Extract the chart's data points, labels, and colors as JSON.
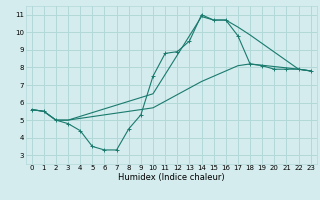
{
  "title": "",
  "xlabel": "Humidex (Indice chaleur)",
  "ylabel": "",
  "bg_color": "#d4eced",
  "grid_color": "#b2d8d8",
  "line_color": "#1a7a6e",
  "xlim": [
    -0.5,
    23.5
  ],
  "ylim": [
    2.5,
    11.5
  ],
  "xticks": [
    0,
    1,
    2,
    3,
    4,
    5,
    6,
    7,
    8,
    9,
    10,
    11,
    12,
    13,
    14,
    15,
    16,
    17,
    18,
    19,
    20,
    21,
    22,
    23
  ],
  "yticks": [
    3,
    4,
    5,
    6,
    7,
    8,
    9,
    10,
    11
  ],
  "series": [
    {
      "x": [
        0,
        1,
        2,
        3,
        4,
        5,
        6,
        7,
        8,
        9,
        10,
        11,
        12,
        13,
        14,
        15,
        16,
        17,
        18,
        19,
        20,
        21,
        22,
        23
      ],
      "y": [
        5.6,
        5.5,
        5.0,
        4.8,
        4.4,
        3.5,
        3.3,
        3.3,
        4.5,
        5.3,
        7.5,
        8.8,
        8.9,
        9.5,
        11.0,
        10.7,
        10.7,
        9.8,
        8.2,
        8.1,
        7.9,
        7.9,
        7.9,
        7.8
      ],
      "marker": "+"
    },
    {
      "x": [
        0,
        1,
        2,
        3,
        10,
        14,
        15,
        16,
        17,
        18,
        22,
        23
      ],
      "y": [
        5.6,
        5.5,
        5.0,
        5.0,
        6.5,
        10.9,
        10.7,
        10.7,
        10.3,
        9.85,
        7.9,
        7.8
      ],
      "marker": null
    },
    {
      "x": [
        0,
        1,
        2,
        3,
        10,
        14,
        15,
        16,
        17,
        18,
        22,
        23
      ],
      "y": [
        5.6,
        5.5,
        5.0,
        5.0,
        5.7,
        7.2,
        7.5,
        7.8,
        8.1,
        8.2,
        7.9,
        7.8
      ],
      "marker": null
    }
  ]
}
